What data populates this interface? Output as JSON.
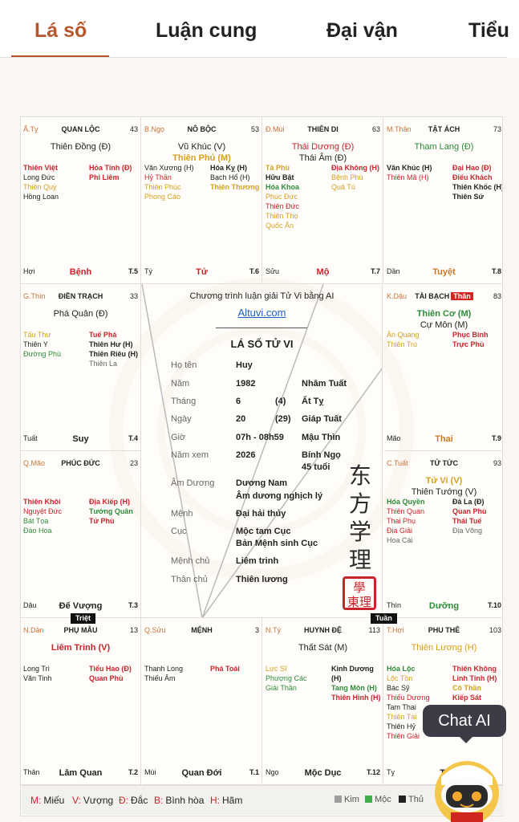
{
  "tabs": [
    {
      "label": "Lá số",
      "active": true
    },
    {
      "label": "Luận cung"
    },
    {
      "label": "Đại vận"
    },
    {
      "label": "Tiểu"
    }
  ],
  "cells": [
    {
      "id": "ty",
      "can": "Ấ.Tỵ",
      "palace": "QUAN LỘC",
      "age": "43",
      "main": [
        {
          "t": "Thiên Đồng (Đ)",
          "c": "c-dk"
        }
      ],
      "left": [
        {
          "t": "Thiên Việt",
          "c": "c-red b"
        },
        {
          "t": "Long Đức",
          "c": "c-dk"
        },
        {
          "t": "Thiên Quý",
          "c": "c-yel"
        },
        {
          "t": "Hồng Loan",
          "c": "c-dk"
        }
      ],
      "right": [
        {
          "t": "Hỏa Tinh (Đ)",
          "c": "c-red b"
        },
        {
          "t": "Phi Liêm",
          "c": "c-red b"
        }
      ],
      "bl": "Hợi",
      "bc": "Bệnh",
      "bcc": "c-red",
      "br": "T.5"
    },
    {
      "id": "ngo",
      "can": "B.Ngọ",
      "palace": "NÔ BỘC",
      "age": "53",
      "main": [
        {
          "t": "Vũ Khúc (V)",
          "c": "c-dk"
        },
        {
          "t": "Thiên Phủ (M)",
          "c": "c-yel b"
        }
      ],
      "left": [
        {
          "t": "Văn Xương (H)",
          "c": "c-dk"
        },
        {
          "t": "Hỷ Thần",
          "c": "c-red"
        },
        {
          "t": "Thiên Phúc",
          "c": "c-yel"
        },
        {
          "t": "Phong Cáo",
          "c": "c-yel"
        }
      ],
      "right": [
        {
          "t": "Hóa Kỵ (H)",
          "c": "c-dk b"
        },
        {
          "t": "Bạch Hổ (H)",
          "c": "c-dk"
        },
        {
          "t": "Thiên Thương",
          "c": "c-yel b"
        }
      ],
      "bl": "Tý",
      "bc": "Tử",
      "bcc": "c-red",
      "br": "T.6"
    },
    {
      "id": "mui",
      "can": "Đ.Mùi",
      "palace": "THIÊN DI",
      "age": "63",
      "main": [
        {
          "t": "Thái Dương (Đ)",
          "c": "c-red"
        },
        {
          "t": "Thái Âm (Đ)",
          "c": "c-dk"
        }
      ],
      "left": [
        {
          "t": "Tả Phù",
          "c": "c-yel b"
        },
        {
          "t": "Hữu Bật",
          "c": "c-dk b"
        },
        {
          "t": "Hóa Khoa",
          "c": "c-green b"
        },
        {
          "t": "Phúc Đức",
          "c": "c-yel"
        },
        {
          "t": "Thiên Đức",
          "c": "c-red"
        },
        {
          "t": "Thiên Thọ",
          "c": "c-yel"
        },
        {
          "t": "Quốc Ấn",
          "c": "c-yel"
        }
      ],
      "right": [
        {
          "t": "Địa Không (H)",
          "c": "c-red b"
        },
        {
          "t": "Bệnh Phù",
          "c": "c-yel"
        },
        {
          "t": "Quả Tú",
          "c": "c-yel"
        }
      ],
      "bl": "Sửu",
      "bc": "Mộ",
      "bcc": "c-red",
      "br": "T.7"
    },
    {
      "id": "than",
      "can": "M.Thân",
      "palace": "TẬT ÁCH",
      "age": "73",
      "main": [
        {
          "t": "Tham Lang (Đ)",
          "c": "c-green"
        }
      ],
      "left": [
        {
          "t": "Văn Khúc (H)",
          "c": "c-dk b"
        },
        {
          "t": "Thiên Mã (H)",
          "c": "c-red"
        }
      ],
      "right": [
        {
          "t": "Đại Hao (Đ)",
          "c": "c-red b"
        },
        {
          "t": "Điếu Khách",
          "c": "c-red b"
        },
        {
          "t": "Thiên Khốc (H)",
          "c": "c-dk b"
        },
        {
          "t": "Thiên Sứ",
          "c": "c-dk b"
        }
      ],
      "bl": "Dần",
      "bc": "Tuyệt",
      "bcc": "c-org",
      "br": "T.8"
    },
    {
      "id": "thin",
      "can": "G.Thìn",
      "palace": "ĐIỀN TRẠCH",
      "age": "33",
      "main": [
        {
          "t": "Phá Quân (Đ)",
          "c": "c-dk"
        }
      ],
      "left": [
        {
          "t": "Tấu Thư",
          "c": "c-yel"
        },
        {
          "t": "Thiên Y",
          "c": "c-dk"
        },
        {
          "t": "Đường Phù",
          "c": "c-green"
        }
      ],
      "right": [
        {
          "t": "Tuế Phá",
          "c": "c-red b"
        },
        {
          "t": "Thiên Hư (H)",
          "c": "c-dk b"
        },
        {
          "t": "Thiên Riêu (H)",
          "c": "c-dk b"
        },
        {
          "t": "Thiên La",
          "c": "c-gry"
        }
      ],
      "bl": "Tuất",
      "bc": "Suy",
      "bcc": "c-dk",
      "br": "T.4"
    },
    {
      "id": "dau",
      "can": "K.Dậu",
      "palace": "TÀI BẠCH",
      "than": "Thân",
      "age": "83",
      "main": [
        {
          "t": "Thiên Cơ (M)",
          "c": "c-green b"
        },
        {
          "t": "Cự Môn (M)",
          "c": "c-dk"
        }
      ],
      "left": [
        {
          "t": "Ân Quang",
          "c": "c-yel"
        },
        {
          "t": "Thiên Trù",
          "c": "c-yel"
        }
      ],
      "right": [
        {
          "t": "Phục Binh",
          "c": "c-red b"
        },
        {
          "t": "Trực Phù",
          "c": "c-red b"
        }
      ],
      "bl": "Mão",
      "bc": "Thai",
      "bcc": "c-org",
      "br": "T.9"
    },
    {
      "id": "mao",
      "can": "Q.Mão",
      "palace": "PHÚC ĐỨC",
      "age": "23",
      "main": [],
      "left": [
        {
          "t": "Thiên Khôi",
          "c": "c-red b"
        },
        {
          "t": "Nguyệt Đức",
          "c": "c-red"
        },
        {
          "t": "Bát Tọa",
          "c": "c-green"
        },
        {
          "t": "Đào Hoa",
          "c": "c-green"
        }
      ],
      "right": [
        {
          "t": "Địa Kiếp (H)",
          "c": "c-red b"
        },
        {
          "t": "Tướng Quân",
          "c": "c-green b"
        },
        {
          "t": "Tử Phù",
          "c": "c-red b"
        }
      ],
      "bl": "Dậu",
      "bc": "Đế Vượng",
      "bcc": "c-dk",
      "br": "T.3"
    },
    {
      "id": "tuat",
      "can": "C.Tuất",
      "palace": "TỬ TỨC",
      "age": "93",
      "main": [
        {
          "t": "Tử Vi (V)",
          "c": "c-yel b"
        },
        {
          "t": "Thiên Tướng (V)",
          "c": "c-dk"
        }
      ],
      "left": [
        {
          "t": "Hóa Quyền",
          "c": "c-green b"
        },
        {
          "t": "Thiên Quan",
          "c": "c-red"
        },
        {
          "t": "Thai Phụ",
          "c": "c-red"
        },
        {
          "t": "Địa Giải",
          "c": "c-red"
        },
        {
          "t": "Hoa Cái",
          "c": "c-gry"
        }
      ],
      "right": [
        {
          "t": "Đà La (Đ)",
          "c": "c-dk b"
        },
        {
          "t": "Quan Phù",
          "c": "c-red b"
        },
        {
          "t": "Thái Tuế",
          "c": "c-red b"
        },
        {
          "t": "Địa Võng",
          "c": "c-gry"
        }
      ],
      "bl": "Thìn",
      "bc": "Dưỡng",
      "bcc": "c-green",
      "br": "T.10"
    },
    {
      "id": "dan",
      "can": "N.Dần",
      "palace": "PHỤ MẪU",
      "age": "13",
      "tag": "Triệt",
      "main": [
        {
          "t": "Liêm Trinh (V)",
          "c": "c-red b"
        }
      ],
      "left": [
        {
          "t": "Long Trì",
          "c": "c-dk"
        },
        {
          "t": "Văn Tinh",
          "c": "c-dk"
        }
      ],
      "right": [
        {
          "t": "Tiểu Hao (Đ)",
          "c": "c-red b"
        },
        {
          "t": "Quan Phù",
          "c": "c-red b"
        }
      ],
      "bl": "Thân",
      "bc": "Lâm Quan",
      "bcc": "c-dk",
      "br": "T.2"
    },
    {
      "id": "suu",
      "can": "Q.Sửu",
      "palace": "MỆNH",
      "age": "3",
      "main": [],
      "left": [
        {
          "t": "Thanh Long",
          "c": "c-dk"
        },
        {
          "t": "Thiếu Âm",
          "c": "c-dk"
        }
      ],
      "right": [
        {
          "t": "Phá Toái",
          "c": "c-red b"
        }
      ],
      "bl": "Mùi",
      "bc": "Quan Đới",
      "bcc": "c-dk",
      "br": "T.1"
    },
    {
      "id": "ti",
      "can": "N.Tý",
      "palace": "HUYNH ĐỆ",
      "age": "113",
      "tag": "Tuần",
      "main": [
        {
          "t": "Thất Sát (M)",
          "c": "c-dk"
        }
      ],
      "left": [
        {
          "t": "Lực Sĩ",
          "c": "c-yel"
        },
        {
          "t": "Phượng Các",
          "c": "c-green"
        },
        {
          "t": "Giải Thần",
          "c": "c-green"
        }
      ],
      "right": [
        {
          "t": "Kình Dương (H)",
          "c": "c-dk b"
        },
        {
          "t": "Tang Môn (H)",
          "c": "c-green b"
        },
        {
          "t": "Thiên Hình (H)",
          "c": "c-red b"
        }
      ],
      "bl": "Ngọ",
      "bc": "Mộc Dục",
      "bcc": "c-dk",
      "br": "T.12"
    },
    {
      "id": "hoi",
      "can": "T.Hợi",
      "palace": "PHU THÊ",
      "age": "103",
      "main": [
        {
          "t": "Thiên Lương (H)",
          "c": "c-yel"
        }
      ],
      "left": [
        {
          "t": "Hóa Lộc",
          "c": "c-green b"
        },
        {
          "t": "Lộc Tồn",
          "c": "c-yel"
        },
        {
          "t": "Bác Sỹ",
          "c": "c-dk"
        },
        {
          "t": "Thiếu Dương",
          "c": "c-red"
        },
        {
          "t": "Tam Thai",
          "c": "c-dk"
        },
        {
          "t": "Thiên Tài",
          "c": "c-yel"
        },
        {
          "t": "Thiên Hỷ",
          "c": "c-dk"
        },
        {
          "t": "Thiên Giải",
          "c": "c-red"
        }
      ],
      "right": [
        {
          "t": "Thiên Không",
          "c": "c-red b"
        },
        {
          "t": "Linh Tinh (H)",
          "c": "c-red b"
        },
        {
          "t": "Cô Thần",
          "c": "c-yel b"
        },
        {
          "t": "Kiếp Sát",
          "c": "c-red b"
        }
      ],
      "bl": "Tỵ",
      "bc": "Tr",
      "bcc": "c-dk",
      "br": ""
    }
  ],
  "center": {
    "header": "Chương trình luận giải Tử Vi bằng AI",
    "link": "Altuvi.com",
    "title": "LÁ SỐ TỬ VI",
    "rows": [
      {
        "k": "Họ tên",
        "v1": "Huy",
        "v2": "",
        "v3": ""
      },
      {
        "k": "Năm",
        "v1": "1982",
        "v2": "",
        "v3": "Nhâm Tuất"
      },
      {
        "k": "Tháng",
        "v1": "6",
        "v2": "(4)",
        "v3": "Ất Tỵ"
      },
      {
        "k": "Ngày",
        "v1": "20",
        "v2": "(29)",
        "v3": "Giáp Tuất"
      },
      {
        "k": "Giờ",
        "v1": "07h - 08h59",
        "v2": "",
        "v3": "Mậu Thìn"
      },
      {
        "k": "Năm xem",
        "v1": "2026",
        "v2": "",
        "v3": "Bính Ngọ"
      },
      {
        "k": "",
        "v1": "",
        "v2": "",
        "v3": "45 tuổi"
      },
      {
        "k": "Âm Dương",
        "v1": "Dương Nam",
        "v2": "",
        "v3": ""
      },
      {
        "k": "",
        "v1": "Âm dương nghịch lý",
        "v2": "",
        "v3": ""
      },
      {
        "k": "Mệnh",
        "v1": "Đại hải thủy",
        "v2": "",
        "v3": ""
      },
      {
        "k": "Cục",
        "v1": "Mộc tam Cục",
        "v2": "",
        "v3": ""
      },
      {
        "k": "",
        "v1": "Bản Mệnh sinh Cục",
        "v2": "",
        "v3": ""
      },
      {
        "k": "Mệnh chủ",
        "v1": "Liêm trinh",
        "v2": "",
        "v3": ""
      },
      {
        "k": "Thân chủ",
        "v1": "Thiên lương",
        "v2": "",
        "v3": ""
      }
    ],
    "chinese": [
      "东",
      "方",
      "学",
      "理"
    ],
    "seal": "學東理"
  },
  "legend": {
    "items": [
      {
        "k": "M:",
        "v": "Miếu"
      },
      {
        "k": "V:",
        "v": "Vượng"
      },
      {
        "k": "Đ:",
        "v": "Đắc"
      },
      {
        "k": "B:",
        "v": "Bình hòa"
      },
      {
        "k": "H:",
        "v": "Hãm"
      }
    ],
    "elements": [
      {
        "v": "Kim",
        "color": "#9e9e9e"
      },
      {
        "v": "Mộc",
        "color": "#3fae49"
      },
      {
        "v": "Thủ",
        "color": "#222222"
      }
    ]
  },
  "chat": {
    "label": "Chat AI"
  }
}
